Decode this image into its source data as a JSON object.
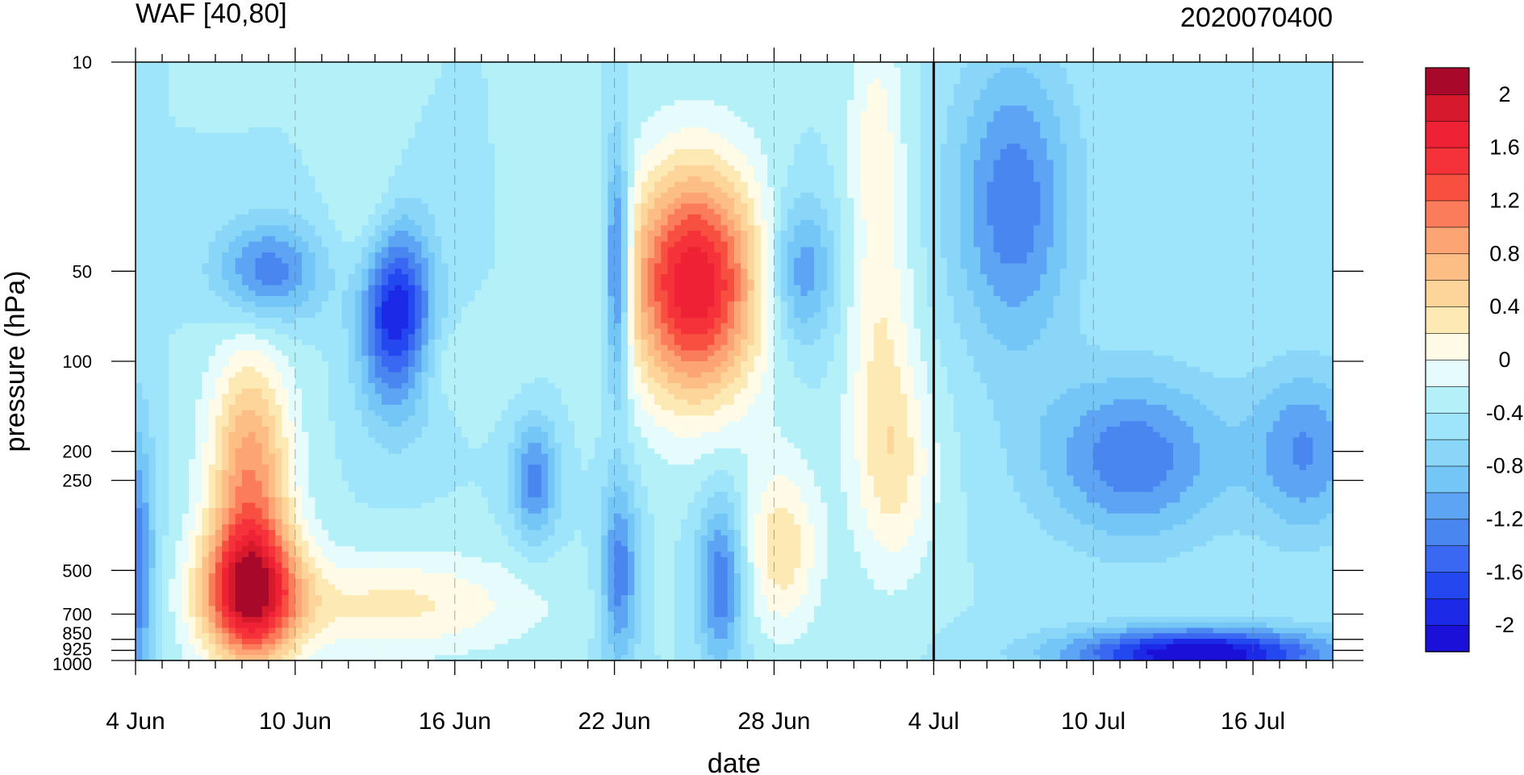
{
  "chart_data": {
    "type": "heatmap",
    "title_left": "WAF [40,80]",
    "title_right": "2020070400",
    "xlabel": "date",
    "ylabel": "pressure (hPa)",
    "x_axis": {
      "type": "date",
      "start": "4 Jun",
      "end": "19 Jul",
      "ticks": [
        "4 Jun",
        "10 Jun",
        "16 Jun",
        "22 Jun",
        "28 Jun",
        "4 Jul",
        "10 Jul",
        "16 Jul"
      ],
      "scale": "daily"
    },
    "y_axis": {
      "scale": "log",
      "inverted": true,
      "ylim": [
        1000,
        10
      ],
      "ticks": [
        10,
        50,
        100,
        200,
        250,
        500,
        700,
        850,
        925,
        1000
      ]
    },
    "colorbar": {
      "labels": [
        "2",
        "1.6",
        "1.2",
        "0.8",
        "0.4",
        "0",
        "-0.4",
        "-0.8",
        "-1.2",
        "-1.6",
        "-2"
      ],
      "levels": [
        -2.2,
        -2.0,
        -1.8,
        -1.6,
        -1.4,
        -1.2,
        -1.0,
        -0.8,
        -0.6,
        -0.4,
        -0.2,
        0,
        0.2,
        0.4,
        0.6,
        0.8,
        1.0,
        1.2,
        1.4,
        1.6,
        1.8,
        2.0,
        2.2
      ],
      "colors": [
        "#1a10d8",
        "#1c2ae8",
        "#2448f0",
        "#3a68f2",
        "#4a86f0",
        "#5ea4f4",
        "#74c6f6",
        "#8ad6f8",
        "#9ee4fa",
        "#b4f0f8",
        "#e6fbfb",
        "#fffbe6",
        "#fde9b4",
        "#fdd49a",
        "#fdbe86",
        "#fca474",
        "#fa7c5a",
        "#f85040",
        "#f5323a",
        "#ee2234",
        "#d61a2c",
        "#a8082a"
      ]
    },
    "reference_line": "4 Jul",
    "features": [
      {
        "name": "positive maximum",
        "date": "25 Jun",
        "pressure_hPa": 50,
        "value": 2.0
      },
      {
        "name": "positive maximum",
        "date": "8 Jun",
        "pressure_hPa": 600,
        "value": 1.9
      },
      {
        "name": "positive maximum",
        "date": "8 Jun",
        "pressure_hPa": 200,
        "value": 1.4
      },
      {
        "name": "negative minimum",
        "date": "14 Jun",
        "pressure_hPa": 90,
        "value": -1.7
      },
      {
        "name": "negative minimum",
        "date": "15 Jul",
        "pressure_hPa": 960,
        "value": -1.8
      },
      {
        "name": "negative minimum",
        "date": "22 Jun",
        "pressure_hPa": 50,
        "value": -1.5
      }
    ]
  }
}
